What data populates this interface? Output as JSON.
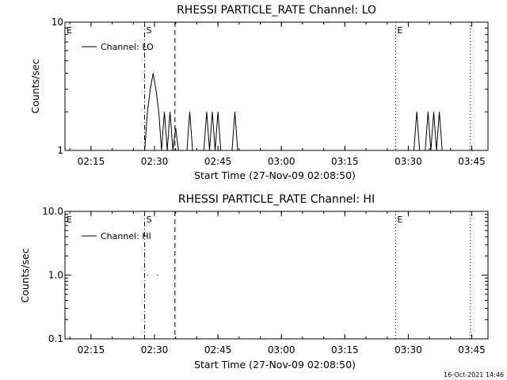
{
  "footer": {
    "timestamp": "16-Oct-2021 14:46"
  },
  "chart_data": [
    {
      "type": "line",
      "title": "RHESSI PARTICLE_RATE Channel: LO",
      "xlabel": "Start Time (27-Nov-09 02:08:50)",
      "ylabel": "Counts/sec",
      "yscale": "log",
      "xlim": [
        "02:08:50",
        "03:48:50"
      ],
      "ylim": [
        1,
        10
      ],
      "x_ticks": [
        "02:15",
        "02:30",
        "02:45",
        "03:00",
        "03:15",
        "03:30",
        "03:45"
      ],
      "y_ticks": [
        "1",
        "10"
      ],
      "legend": {
        "position": "top-left",
        "entries": [
          "Channel: LO"
        ]
      },
      "vertical_markers": [
        {
          "label": "E",
          "x": "02:08:50",
          "style": "dotted"
        },
        {
          "label": "S",
          "x": "02:27:40",
          "style": "dash-dot"
        },
        {
          "label": "",
          "x": "02:34:50",
          "style": "dashed"
        },
        {
          "label": "E",
          "x": "03:27:00",
          "style": "dotted"
        },
        {
          "label": "",
          "x": "03:44:40",
          "style": "dotted"
        }
      ],
      "series": [
        {
          "name": "Channel: LO",
          "x": [
            "02:27:40",
            "02:28:20",
            "02:29:00",
            "02:29:40",
            "02:30:20",
            "02:31:00",
            "02:31:40",
            "02:32:20",
            "02:33:00",
            "02:33:40",
            "02:34:20",
            "02:35:00",
            "02:35:40",
            "02:36:20",
            "02:37:00",
            "02:37:40",
            "02:38:20",
            "02:39:00",
            "02:39:40",
            "02:40:20",
            "02:41:00",
            "02:41:40",
            "02:42:20",
            "02:43:00",
            "02:43:40",
            "02:44:20",
            "02:45:00",
            "02:45:40",
            "02:46:20",
            "02:47:00",
            "02:47:40",
            "02:48:20",
            "02:49:00",
            "02:49:40",
            "02:50:20",
            "03:31:20",
            "03:32:00",
            "03:32:40",
            "03:33:20",
            "03:34:00",
            "03:34:40",
            "03:35:20",
            "03:36:00",
            "03:36:40",
            "03:37:20",
            "03:38:00"
          ],
          "values": [
            1,
            2.0,
            3.0,
            4.0,
            3.0,
            2.0,
            1,
            2,
            1,
            2,
            1,
            1.5,
            1,
            1,
            1,
            1,
            2,
            1,
            1,
            1,
            1,
            1,
            2,
            1,
            2,
            1,
            2,
            1,
            1,
            1,
            1,
            1,
            2,
            1,
            1,
            1,
            2,
            1,
            1,
            1,
            2,
            1,
            2,
            1,
            2,
            1
          ]
        }
      ]
    },
    {
      "type": "line",
      "title": "RHESSI PARTICLE_RATE Channel: HI",
      "xlabel": "Start Time (27-Nov-09 02:08:50)",
      "ylabel": "Counts/sec",
      "yscale": "log",
      "xlim": [
        "02:08:50",
        "03:48:50"
      ],
      "ylim": [
        0.1,
        10
      ],
      "x_ticks": [
        "02:15",
        "02:30",
        "02:45",
        "03:00",
        "03:15",
        "03:30",
        "03:45"
      ],
      "y_ticks": [
        "0.1",
        "1.0",
        "10.0"
      ],
      "legend": {
        "position": "top-left",
        "entries": [
          "Channel: HI"
        ]
      },
      "vertical_markers": [
        {
          "label": "E",
          "x": "02:08:50",
          "style": "dotted"
        },
        {
          "label": "S",
          "x": "02:27:40",
          "style": "dash-dot"
        },
        {
          "label": "",
          "x": "02:34:50",
          "style": "dashed"
        },
        {
          "label": "E",
          "x": "03:27:00",
          "style": "dotted"
        },
        {
          "label": "",
          "x": "03:44:40",
          "style": "dotted"
        }
      ],
      "series": [
        {
          "name": "Channel: HI",
          "x": [
            "02:28:20",
            "02:30:40"
          ],
          "values": [
            1.0,
            1.0
          ]
        }
      ]
    }
  ]
}
